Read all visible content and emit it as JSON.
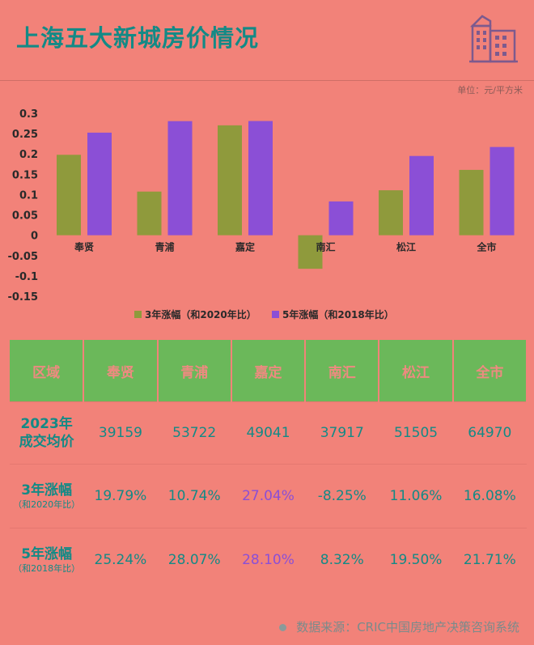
{
  "title": "上海五大新城房价情况",
  "unit": "单位：元/平方米",
  "chart_data": {
    "type": "bar",
    "categories": [
      "奉贤",
      "青浦",
      "嘉定",
      "南汇",
      "松江",
      "全市"
    ],
    "series": [
      {
        "name": "3年涨幅（和2020年比）",
        "values": [
          0.1979,
          0.1074,
          0.2704,
          -0.0825,
          0.1106,
          0.1608
        ]
      },
      {
        "name": "5年涨幅（和2018年比）",
        "values": [
          0.2524,
          0.2807,
          0.281,
          0.0832,
          0.195,
          0.2171
        ]
      }
    ],
    "yticks": [
      "0.3",
      "0.25",
      "0.2",
      "0.15",
      "0.1",
      "0.05",
      "0",
      "-0.05",
      "-0.1",
      "-0.15"
    ],
    "ylim": [
      -0.15,
      0.3
    ],
    "legend": "bottom",
    "colors": {
      "series1": "#8f9a3c",
      "series2": "#8b4fd6"
    }
  },
  "table": {
    "headers": [
      "区域",
      "奉贤",
      "青浦",
      "嘉定",
      "南汇",
      "松江",
      "全市"
    ],
    "rows": [
      {
        "label": "2023年成交均价",
        "label_sub": "",
        "values": [
          "39159",
          "53722",
          "49041",
          "37917",
          "51505",
          "64970"
        ]
      },
      {
        "label": "3年涨幅",
        "label_sub": "（和2020年比）",
        "values": [
          "19.79%",
          "10.74%",
          "27.04%",
          "-8.25%",
          "11.06%",
          "16.08%"
        ]
      },
      {
        "label": "5年涨幅",
        "label_sub": "（和2018年比）",
        "values": [
          "25.24%",
          "28.07%",
          "28.10%",
          "8.32%",
          "19.50%",
          "21.71%"
        ]
      }
    ]
  },
  "source": "数据来源：CRIC中国房地产决策咨询系统",
  "colors": {
    "background": "#f28279",
    "accent": "#138a86",
    "header_bg": "#6bb85a"
  }
}
